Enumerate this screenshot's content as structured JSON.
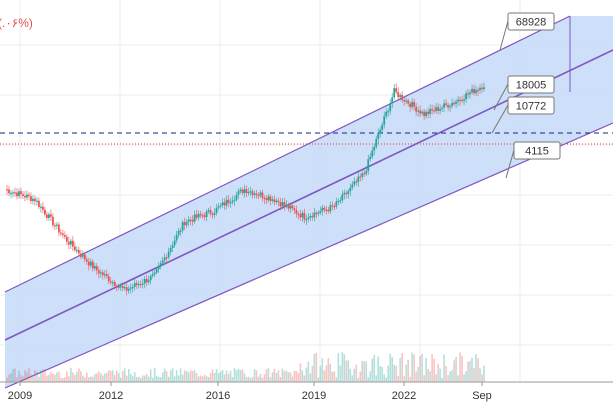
{
  "chart_data": {
    "type": "line",
    "corner_text": "(.۰۶%)",
    "x_ticks": [
      "2009",
      "2012",
      "2016",
      "2019",
      "2022",
      "Sep"
    ],
    "x": [
      "2008.6",
      "2009",
      "2010",
      "2011",
      "2012",
      "2013",
      "2014",
      "2015",
      "2016",
      "2017",
      "2018",
      "2019",
      "2020",
      "2021",
      "2022",
      "2023",
      "2024"
    ],
    "price": [
      1100,
      900,
      420,
      230,
      150,
      200,
      580,
      720,
      1100,
      900,
      640,
      780,
      1500,
      7500,
      4800,
      6100,
      8600
    ],
    "channel": {
      "upper_label": "68928",
      "middle_label": "18005",
      "lower_label": "4115",
      "current_label": "10772"
    },
    "reference_lines": [
      {
        "style": "dashed",
        "color": "#1a237e"
      },
      {
        "style": "dotted",
        "color": "#e53935"
      }
    ],
    "colors": {
      "channel_fill": "#c8dcf8",
      "channel_line": "#7e57c2",
      "up": "#26a69a",
      "down": "#ef5350"
    },
    "grid": true
  }
}
